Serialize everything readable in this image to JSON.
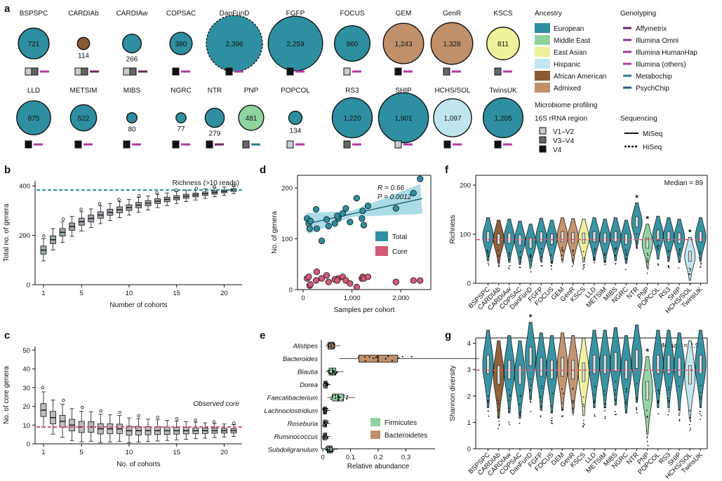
{
  "panel_labels": [
    "a",
    "b",
    "c",
    "d",
    "e",
    "f",
    "g"
  ],
  "chart_data": [
    {
      "panel": "a",
      "type": "bubble",
      "cohorts_row1": [
        {
          "name": "BSPSPC",
          "n": 721,
          "ancestry": "European",
          "region": [
            "V1–V2",
            "V3–V4"
          ],
          "genotyping": "Illumina (others)",
          "seq": "MiSeq"
        },
        {
          "name": "CARDIAb",
          "n": 114,
          "ancestry": "African American",
          "region": [
            "V1–V2",
            "V3–V4"
          ],
          "genotyping": "Affymetrix",
          "seq": "MiSeq"
        },
        {
          "name": "CARDIAw",
          "n": 266,
          "ancestry": "European",
          "region": [
            "V1–V2",
            "V3–V4"
          ],
          "genotyping": "Affymetrix",
          "seq": "MiSeq"
        },
        {
          "name": "COPSAC",
          "n": 380,
          "ancestry": "European",
          "region": [
            "V4"
          ],
          "genotyping": "Illumina (others)",
          "seq": "MiSeq"
        },
        {
          "name": "DanFunD",
          "n": "2,396",
          "ancestry": "European",
          "region": [
            "V4"
          ],
          "genotyping": "Illumina (others)",
          "seq": "HiSeq"
        },
        {
          "name": "FGFP",
          "n": "2,259",
          "ancestry": "European",
          "region": [
            "V4"
          ],
          "genotyping": "Illumina (others)",
          "seq": "MiSeq"
        },
        {
          "name": "FOCUS",
          "n": 960,
          "ancestry": "European",
          "region": [
            "V1–V2"
          ],
          "genotyping": "Illumina (others)",
          "seq": "MiSeq"
        },
        {
          "name": "GEM",
          "n": "1,243",
          "ancestry": "Admixed",
          "region": [
            "V4"
          ],
          "genotyping": "Illumina (others)",
          "seq": "MiSeq"
        },
        {
          "name": "GenR",
          "n": "1,328",
          "ancestry": "Admixed",
          "region": [
            "V3–V4"
          ],
          "genotyping": "Illumina (others)",
          "seq": "MiSeq"
        },
        {
          "name": "KSCS",
          "n": 811,
          "ancestry": "East Asian",
          "region": [
            "V3–V4"
          ],
          "genotyping": "Illumina (others)",
          "seq": "MiSeq"
        }
      ],
      "cohorts_row2": [
        {
          "name": "LLD",
          "n": 875,
          "ancestry": "European",
          "region": [
            "V4"
          ],
          "genotyping": "Illumina (others)",
          "seq": "MiSeq"
        },
        {
          "name": "METSIM",
          "n": 522,
          "ancestry": "European",
          "region": [
            "V4"
          ],
          "genotyping": "Illumina (others)",
          "seq": "MiSeq"
        },
        {
          "name": "MIBS",
          "n": 80,
          "ancestry": "European",
          "region": [
            "V4"
          ],
          "genotyping": "Illumina (others)",
          "seq": "MiSeq"
        },
        {
          "name": "NGRC",
          "n": 77,
          "ancestry": "European",
          "region": [
            "V4"
          ],
          "genotyping": "Illumina (others)",
          "seq": "MiSeq"
        },
        {
          "name": "NTR",
          "n": 279,
          "ancestry": "European",
          "region": [
            "V4"
          ],
          "genotyping": "Affymetrix",
          "seq": "MiSeq"
        },
        {
          "name": "PNP",
          "n": 481,
          "ancestry": "Middle East",
          "region": [
            "V3–V4"
          ],
          "genotyping": "Metabochip",
          "seq": "MiSeq"
        },
        {
          "name": "POPCOL",
          "n": 134,
          "ancestry": "European",
          "region": [
            "V1–V2"
          ],
          "genotyping": "Illumina (others)",
          "seq": "MiSeq"
        },
        {
          "name": "RS3",
          "n": "1,220",
          "ancestry": "European",
          "region": [
            "V3–V4"
          ],
          "genotyping": "Illumina (others)",
          "seq": "MiSeq"
        },
        {
          "name": "SHIP",
          "n": "1,901",
          "ancestry": "European",
          "region": [
            "V1–V2"
          ],
          "genotyping": "Illumina (others)",
          "seq": "MiSeq"
        },
        {
          "name": "HCHS/SOL",
          "n": "1,097",
          "ancestry": "Hispanic",
          "region": [
            "V4"
          ],
          "genotyping": "Illumina (others)",
          "seq": "MiSeq"
        },
        {
          "name": "TwinsUK",
          "n": "1,205",
          "ancestry": "European",
          "region": [
            "V4"
          ],
          "genotyping": "Illumina (others)",
          "seq": "MiSeq"
        }
      ],
      "ancestry_title": "Ancestry",
      "ancestry": [
        {
          "name": "European",
          "color": "#2e8fa0"
        },
        {
          "name": "Middle East",
          "color": "#8fd3a0"
        },
        {
          "name": "East Asian",
          "color": "#eef29a"
        },
        {
          "name": "Hispanic",
          "color": "#bfe6ef"
        },
        {
          "name": "African American",
          "color": "#8a5a32"
        },
        {
          "name": "Admixed",
          "color": "#c0906a"
        }
      ],
      "genotyping_title": "Genotyping",
      "genotyping": [
        {
          "name": "Affymetrix",
          "color": "#6b2a5c"
        },
        {
          "name": "Illumina Omni",
          "color": "#7b3f8f"
        },
        {
          "name": "Illumina HumanHap",
          "color": "#9a3aa0"
        },
        {
          "name": "Illumina (others)",
          "color": "#b03aa6"
        },
        {
          "name": "Metabochip",
          "color": "#2e7f8c"
        },
        {
          "name": "PsychChip",
          "color": "#1e5f7a"
        }
      ],
      "profiling_title": "Microbiome profiling",
      "region_title": "16S rRNA region",
      "regions": [
        "V1–V2",
        "V3–V4",
        "V4"
      ],
      "seq_title": "Sequencing",
      "seq": [
        "MiSeq",
        "HiSeq"
      ]
    },
    {
      "panel": "b",
      "type": "box",
      "xlabel": "Number of cohorts",
      "ylabel": "Total no. of genera",
      "annotation": "Richness (>10 reads)",
      "reference_line": 383,
      "ylim": [
        0,
        420
      ],
      "yticks": [
        0,
        200,
        400
      ],
      "xticks": [
        1,
        5,
        10,
        15,
        20
      ],
      "x": [
        1,
        2,
        3,
        4,
        5,
        6,
        7,
        8,
        9,
        10,
        11,
        12,
        13,
        14,
        15,
        16,
        17,
        18,
        19,
        20,
        21
      ],
      "median": [
        140,
        182,
        212,
        235,
        255,
        268,
        282,
        293,
        303,
        312,
        322,
        330,
        338,
        345,
        352,
        358,
        363,
        368,
        373,
        378,
        383
      ]
    },
    {
      "panel": "c",
      "type": "box",
      "xlabel": "No. of cohorts",
      "ylabel": "No. of core genera",
      "annotation": "Observed core",
      "reference_line": 9,
      "ylim": [
        0,
        52
      ],
      "yticks": [
        0,
        10,
        20,
        30,
        40,
        50
      ],
      "xticks": [
        1,
        5,
        10,
        15,
        20
      ],
      "x": [
        1,
        2,
        3,
        4,
        5,
        6,
        7,
        8,
        9,
        10,
        11,
        12,
        13,
        14,
        15,
        16,
        17,
        18,
        19,
        20,
        21
      ],
      "median": [
        18,
        14,
        12,
        10,
        9,
        9,
        8,
        8,
        8,
        7,
        7,
        7,
        7,
        7,
        7,
        7,
        7,
        7,
        7,
        7,
        7
      ]
    },
    {
      "panel": "d",
      "type": "scatter",
      "xlabel": "Samples per cohort",
      "ylabel": "No. of genera",
      "xlim": [
        0,
        2500
      ],
      "ylim": [
        0,
        225
      ],
      "xticks": [
        0,
        1000,
        2000
      ],
      "xtick_labels": [
        "0",
        "1,000",
        "2,000"
      ],
      "yticks": [
        0,
        100,
        200
      ],
      "stat_r": "R = 0.66",
      "stat_p": "P = 0.0012",
      "series": [
        {
          "name": "Total",
          "color": "#2e8fa0",
          "points": [
            [
              80,
              140
            ],
            [
              114,
              130
            ],
            [
              134,
              120
            ],
            [
              150,
              135
            ],
            [
              266,
              158
            ],
            [
              279,
              120
            ],
            [
              380,
              96
            ],
            [
              481,
              138
            ],
            [
              522,
              125
            ],
            [
              721,
              140
            ],
            [
              811,
              150
            ],
            [
              875,
              160
            ],
            [
              960,
              133
            ],
            [
              1097,
              180
            ],
            [
              1205,
              140
            ],
            [
              1220,
              155
            ],
            [
              1243,
              127
            ],
            [
              1328,
              165
            ],
            [
              1901,
              160
            ],
            [
              2259,
              190
            ],
            [
              2396,
              218
            ],
            [
              650,
              130
            ],
            [
              700,
              145
            ]
          ]
        },
        {
          "name": "Core",
          "color": "#d45a78",
          "points": [
            [
              80,
              22
            ],
            [
              114,
              25
            ],
            [
              134,
              8
            ],
            [
              150,
              10
            ],
            [
              266,
              18
            ],
            [
              279,
              35
            ],
            [
              380,
              22
            ],
            [
              481,
              28
            ],
            [
              522,
              15
            ],
            [
              721,
              22
            ],
            [
              811,
              25
            ],
            [
              875,
              18
            ],
            [
              960,
              12
            ],
            [
              1097,
              5
            ],
            [
              1205,
              22
            ],
            [
              1220,
              25
            ],
            [
              1243,
              22
            ],
            [
              1328,
              25
            ],
            [
              1901,
              15
            ],
            [
              2259,
              18
            ],
            [
              2396,
              18
            ],
            [
              650,
              20
            ],
            [
              700,
              18
            ]
          ]
        }
      ]
    },
    {
      "panel": "e",
      "type": "box",
      "xlabel": "Relative abundance",
      "xlim": [
        0,
        0.4
      ],
      "xticks": [
        0,
        0.1,
        0.2,
        0.3
      ],
      "xtick_labels": [
        "0",
        "0.1",
        "0.2",
        "0.3"
      ],
      "categories": [
        "Alistipes",
        "Bacteroides",
        "Blautia",
        "Dorea",
        "Faecalibacterium",
        "Lachnoclostridium",
        "Roseburia",
        "Ruminococcus",
        "Subdoligranulum"
      ],
      "phylum": [
        "Bacteroidetes",
        "Bacteroidetes",
        "Firmicutes",
        "Firmicutes",
        "Firmicutes",
        "Firmicutes",
        "Firmicutes",
        "Firmicutes",
        "Firmicutes"
      ],
      "median": [
        0.03,
        0.2,
        0.035,
        0.01,
        0.055,
        0.008,
        0.008,
        0.008,
        0.025
      ],
      "legend": [
        {
          "name": "Firmicutes",
          "color": "#8fd3a0"
        },
        {
          "name": "Bacteroidetes",
          "color": "#c0906a"
        }
      ]
    },
    {
      "panel": "f",
      "type": "violin",
      "ylabel": "Richness",
      "annotation": "Median = 89",
      "reference_line": 89,
      "ylim": [
        0,
        220
      ],
      "yticks": [
        0,
        100,
        200
      ],
      "categories": [
        "BSPSPC",
        "CARDIAb",
        "CARDIAw",
        "COPSAC",
        "DanFunD",
        "FGFP",
        "FOCUS",
        "GEM",
        "GenR",
        "KSCS",
        "LLD",
        "METSIM",
        "MIBS",
        "NGRC",
        "NTR",
        "PNP",
        "POPCOL",
        "RS3",
        "SHIP",
        "HCHS/SOL",
        "TwinsUK"
      ],
      "median": [
        95,
        90,
        92,
        88,
        82,
        94,
        90,
        95,
        93,
        92,
        95,
        92,
        95,
        90,
        125,
        82,
        98,
        95,
        92,
        55,
        95
      ],
      "starred": [
        "NTR",
        "PNP",
        "HCHS/SOL"
      ]
    },
    {
      "panel": "g",
      "type": "violin",
      "ylabel": "Shannon diversity",
      "annotation": "Median = 2.98",
      "reference_line": 2.98,
      "ylim": [
        0,
        4.2
      ],
      "yticks": [
        0,
        1,
        2,
        3,
        4
      ],
      "categories": [
        "BSPSPC",
        "CARDIAb",
        "CARDIAw",
        "COPSAC",
        "DanFunD",
        "FGFP",
        "FOCUS",
        "GEM",
        "GenR",
        "KSCS",
        "LLD",
        "METSIM",
        "MIBS",
        "NGRC",
        "NTR",
        "PNP",
        "POPCOL",
        "RS3",
        "SHIP",
        "HCHS/SOL",
        "TwinsUK"
      ],
      "median": [
        3.2,
        2.8,
        3.0,
        2.8,
        3.5,
        3.1,
        3.0,
        3.1,
        3.0,
        2.9,
        3.2,
        3.2,
        3.3,
        3.0,
        3.4,
        2.2,
        3.2,
        3.2,
        3.1,
        2.8,
        3.2
      ],
      "starred": [
        "DanFunD",
        "PNP"
      ]
    }
  ]
}
